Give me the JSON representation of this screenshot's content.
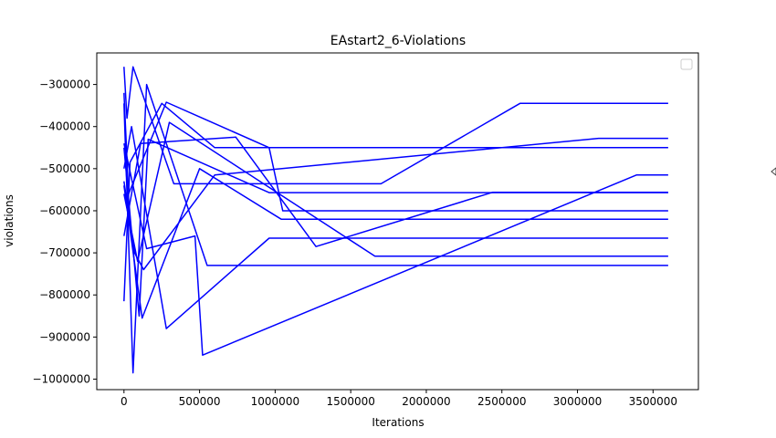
{
  "chart_data": {
    "type": "line",
    "title": "EAstart2_6-Violations",
    "xlabel": "Iterations",
    "ylabel": "violations",
    "xlim": [
      -180000,
      3800000
    ],
    "ylim": [
      -1025000,
      -225000
    ],
    "grid": false,
    "legend": "top-right",
    "line_color": "#0000ff",
    "xticks": [
      {
        "value": 0,
        "label": "0"
      },
      {
        "value": 500000,
        "label": "500000"
      },
      {
        "value": 1000000,
        "label": "1000000"
      },
      {
        "value": 1500000,
        "label": "1500000"
      },
      {
        "value": 2000000,
        "label": "2000000"
      },
      {
        "value": 2500000,
        "label": "2500000"
      },
      {
        "value": 3000000,
        "label": "3000000"
      },
      {
        "value": 3500000,
        "label": "3500000"
      }
    ],
    "yticks": [
      {
        "value": -300000,
        "label": "−300000"
      },
      {
        "value": -400000,
        "label": "−400000"
      },
      {
        "value": -500000,
        "label": "−500000"
      },
      {
        "value": -600000,
        "label": "−600000"
      },
      {
        "value": -700000,
        "label": "−700000"
      },
      {
        "value": -800000,
        "label": "−800000"
      },
      {
        "value": -900000,
        "label": "−900000"
      },
      {
        "value": -1000000,
        "label": "−1000000"
      }
    ],
    "series": [
      {
        "x": [
          0,
          20000,
          60000,
          330000,
          1700000,
          2620000,
          3600000
        ],
        "y": [
          -258000,
          -380000,
          -258000,
          -536000,
          -536000,
          -345000,
          -345000
        ]
      },
      {
        "x": [
          0,
          30000,
          280000,
          960000,
          1050000,
          3600000
        ],
        "y": [
          -320000,
          -560000,
          -342000,
          -450000,
          -600000,
          -600000
        ]
      },
      {
        "x": [
          0,
          60000,
          150000,
          550000,
          3600000
        ],
        "y": [
          -345000,
          -985000,
          -300000,
          -730000,
          -730000
        ]
      },
      {
        "x": [
          0,
          100000,
          160000,
          960000,
          3600000
        ],
        "y": [
          -450000,
          -850000,
          -430000,
          -557000,
          -557000
        ]
      },
      {
        "x": [
          0,
          40000,
          250000,
          600000,
          1660000,
          3600000
        ],
        "y": [
          -815000,
          -485000,
          -345000,
          -450000,
          -450000,
          -450000
        ]
      },
      {
        "x": [
          0,
          90000,
          300000,
          1660000,
          3600000
        ],
        "y": [
          -560000,
          -720000,
          -390000,
          -708000,
          -708000
        ]
      },
      {
        "x": [
          0,
          50000,
          280000,
          960000,
          3600000
        ],
        "y": [
          -500000,
          -400000,
          -880000,
          -665000,
          -665000
        ]
      },
      {
        "x": [
          0,
          70000,
          130000,
          600000,
          3140000,
          3600000
        ],
        "y": [
          -530000,
          -700000,
          -740000,
          -515000,
          -428000,
          -428000
        ]
      },
      {
        "x": [
          0,
          120000,
          500000,
          1040000,
          3600000
        ],
        "y": [
          -540000,
          -855000,
          -500000,
          -620000,
          -620000
        ]
      },
      {
        "x": [
          0,
          110000,
          740000,
          1270000,
          2440000,
          3600000
        ],
        "y": [
          -660000,
          -440000,
          -425000,
          -685000,
          -556000,
          -556000
        ]
      },
      {
        "x": [
          0,
          150000,
          470000,
          520000,
          3390000,
          3600000
        ],
        "y": [
          -440000,
          -690000,
          -660000,
          -943000,
          -515000,
          -515000
        ]
      }
    ]
  }
}
